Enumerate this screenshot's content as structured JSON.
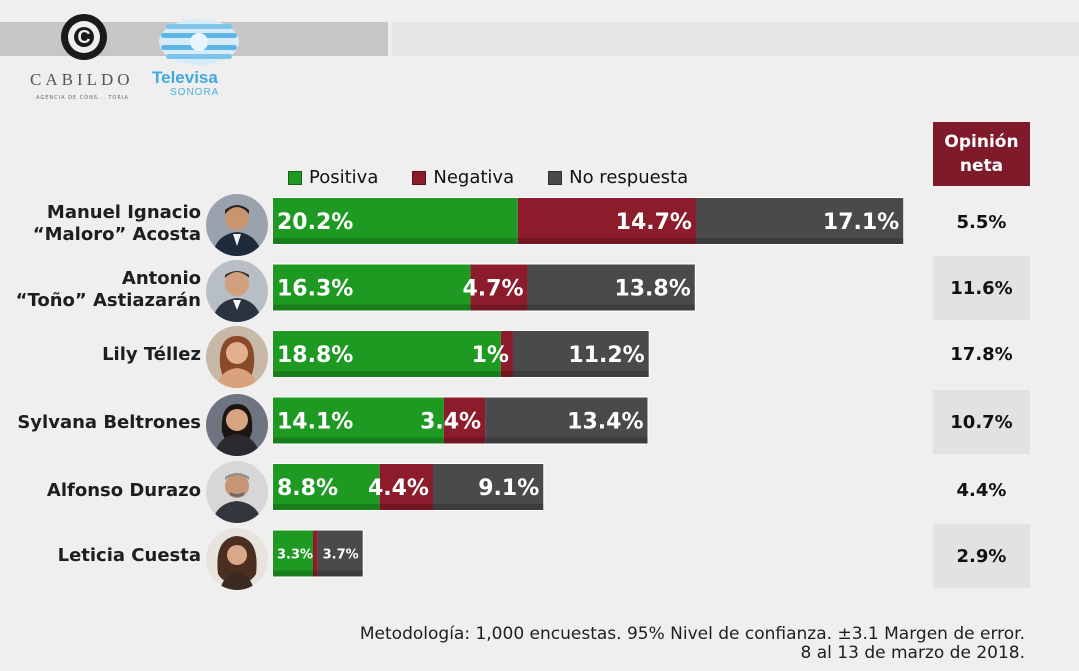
{
  "logos": {
    "cabildo": {
      "name": "CABILDO",
      "tagline": "AGENCIA DE CONS... TORIA"
    },
    "televisa": {
      "name": "Televisa",
      "sub": "SONORA"
    }
  },
  "legend": [
    {
      "label": "Positiva",
      "color": "#1e9a22"
    },
    {
      "label": "Negativa",
      "color": "#8c1c2b"
    },
    {
      "label": "No respuesta",
      "color": "#4a4a4a"
    }
  ],
  "net_header": {
    "line1": "Opinión",
    "line2": "neta",
    "color": "#7f1a2a"
  },
  "candidates": [
    {
      "name_line1": "Manuel Ignacio",
      "name_line2": "“Maloro” Acosta",
      "neta": "5.5%"
    },
    {
      "name_line1": "Antonio",
      "name_line2": "“Toño” Astiazarán",
      "neta": "11.6%"
    },
    {
      "name_line1": "Lily Téllez",
      "name_line2": "",
      "neta": "17.8%"
    },
    {
      "name_line1": "Sylvana Beltrones",
      "name_line2": "",
      "neta": "10.7%"
    },
    {
      "name_line1": "Alfonso Durazo",
      "name_line2": "",
      "neta": "4.4%"
    },
    {
      "name_line1": "Leticia Cuesta",
      "name_line2": "",
      "neta": "2.9%"
    }
  ],
  "chart_data": {
    "type": "bar",
    "orientation": "horizontal",
    "stacked": true,
    "categories": [
      "Manuel Ignacio “Maloro” Acosta",
      "Antonio “Toño” Astiazarán",
      "Lily Téllez",
      "Sylvana Beltrones",
      "Alfonso Durazo",
      "Leticia Cuesta"
    ],
    "series": [
      {
        "name": "Positiva",
        "color": "#1e9a22",
        "values": [
          20.2,
          16.3,
          18.8,
          14.1,
          8.8,
          3.3
        ],
        "labels": [
          "20.2%",
          "16.3%",
          "18.8%",
          "14.1%",
          "8.8%",
          "3.3%"
        ]
      },
      {
        "name": "Negativa",
        "color": "#8c1c2b",
        "values": [
          14.7,
          4.7,
          1,
          3.4,
          4.4,
          0.4
        ],
        "labels": [
          "14.7%",
          "4.7%",
          "1%",
          "3.4%",
          "4.4%",
          ""
        ]
      },
      {
        "name": "No respuesta",
        "color": "#4a4a4a",
        "values": [
          17.1,
          13.8,
          11.2,
          13.4,
          9.1,
          3.7
        ],
        "labels": [
          "17.1%",
          "13.8%",
          "11.2%",
          "13.4%",
          "9.1%",
          "3.7%"
        ]
      }
    ],
    "legend_position": "top",
    "grid": false,
    "net_opinion": [
      "5.5%",
      "11.6%",
      "17.8%",
      "10.7%",
      "4.4%",
      "2.9%"
    ]
  },
  "footer": {
    "line1": "Metodología: 1,000 encuestas. 95% Nivel de confianza. ±3.1 Margen de error.",
    "line2": "8 al 13 de marzo de 2018."
  }
}
